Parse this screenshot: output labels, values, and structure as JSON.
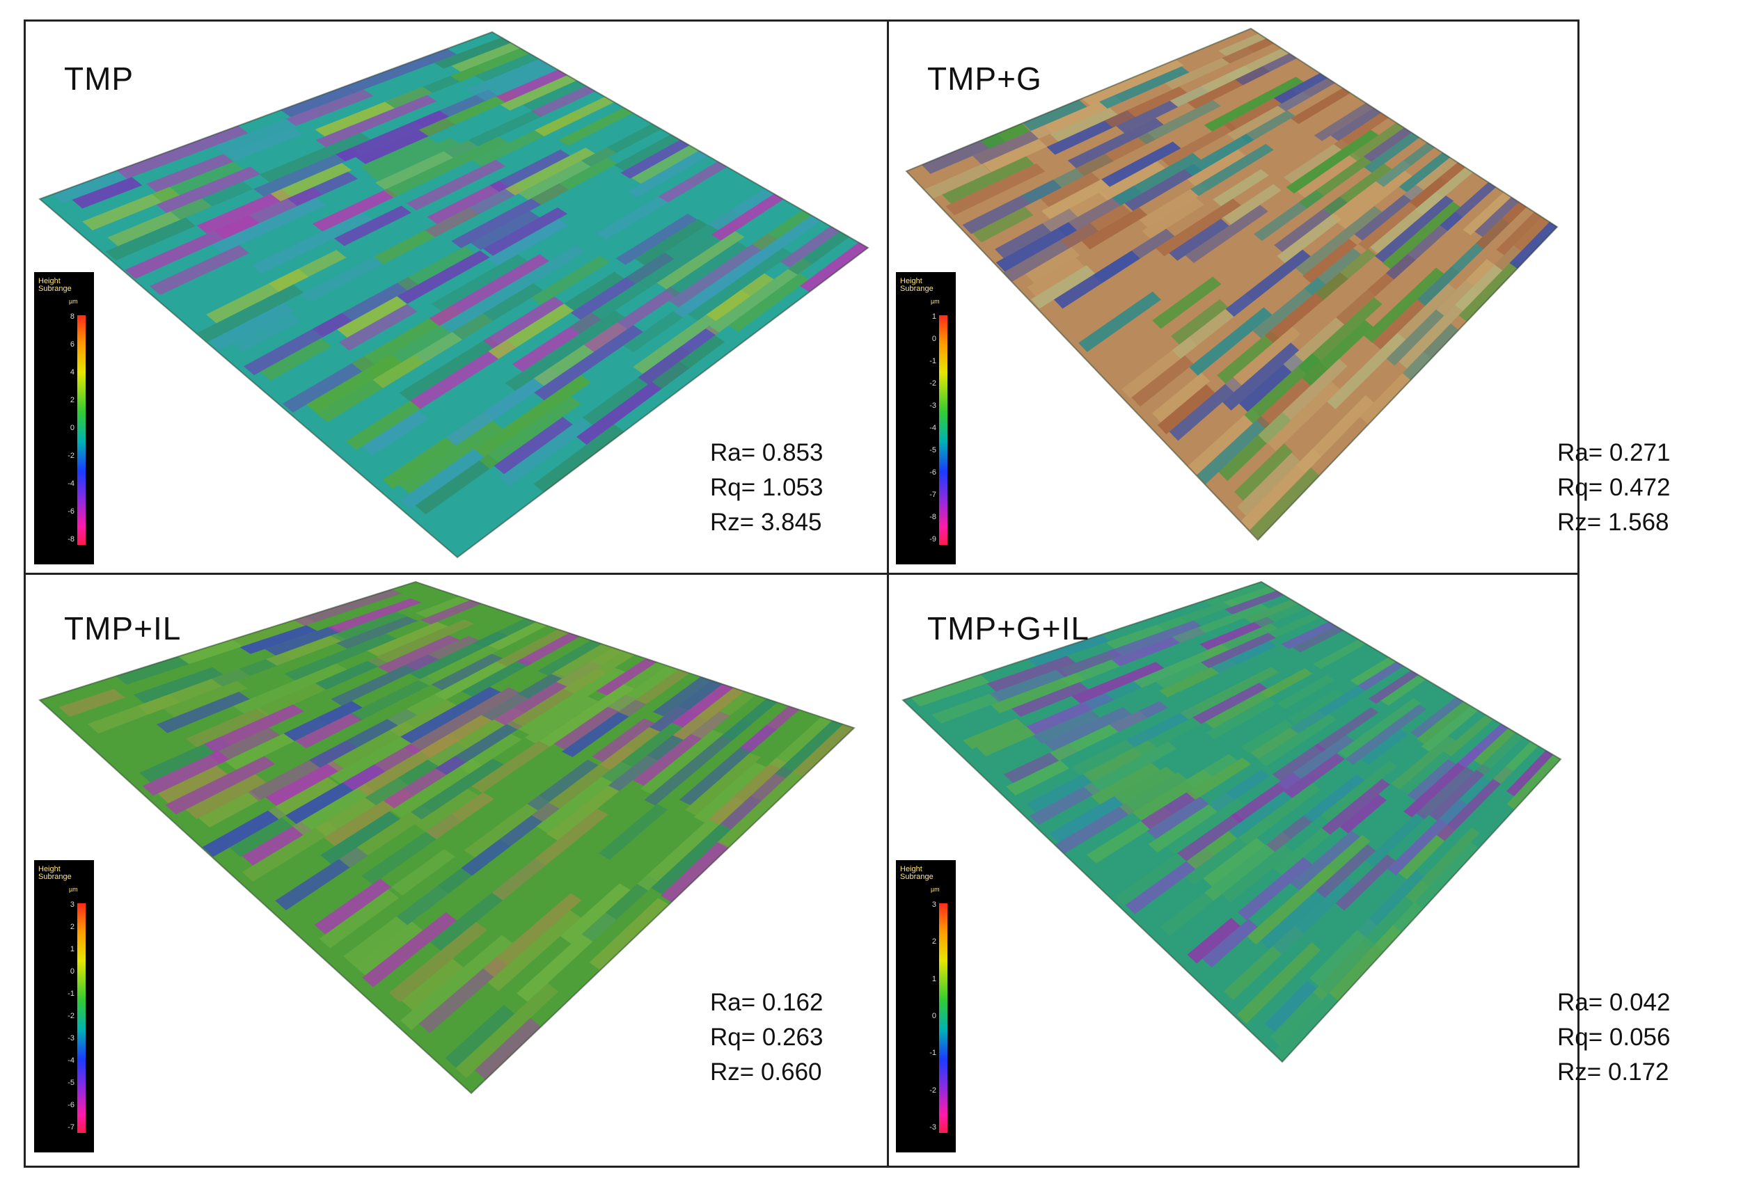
{
  "panels": [
    {
      "title": "TMP",
      "stats": {
        "ra": "Ra= 0.853",
        "rq": "Rq= 1.053",
        "rz": "Rz= 3.845"
      },
      "legend": {
        "head1": "Height",
        "head2": "Subrange",
        "unit": "µm",
        "ticks": [
          "8",
          "6",
          "4",
          "2",
          "0",
          "-2",
          "-4",
          "-6",
          "-8"
        ]
      },
      "palette": [
        "#2aa59a",
        "#2f8f6d",
        "#3c9bb5",
        "#6b3fb5",
        "#b03cb0",
        "#53a83a",
        "#9fbf3a"
      ]
    },
    {
      "title": "TMP+G",
      "stats": {
        "ra": "Ra= 0.271",
        "rq": "Rq= 0.472",
        "rz": "Rz= 1.568"
      },
      "legend": {
        "head1": "Height",
        "head2": "Subrange",
        "unit": "µm",
        "ticks": [
          "1",
          "0",
          "-1",
          "-2",
          "-3",
          "-4",
          "-5",
          "-6",
          "-7",
          "-8",
          "-9"
        ]
      },
      "palette": [
        "#b98a5b",
        "#a5643f",
        "#c9a26a",
        "#3f9a3a",
        "#2c8a8a",
        "#3c4fa5",
        "#b5b07a"
      ]
    },
    {
      "title": "TMP+IL",
      "stats": {
        "ra": "Ra= 0.162",
        "rq": "Rq= 0.263",
        "rz": "Rz= 0.660"
      },
      "legend": {
        "head1": "Height",
        "head2": "Subrange",
        "unit": "µm",
        "ticks": [
          "3",
          "2",
          "1",
          "0",
          "-1",
          "-2",
          "-3",
          "-4",
          "-5",
          "-6",
          "-7"
        ]
      },
      "palette": [
        "#4e9f3a",
        "#79a83e",
        "#9d8f47",
        "#2f8a63",
        "#3b4fb0",
        "#a83cb0",
        "#6db042"
      ]
    },
    {
      "title": "TMP+G+IL",
      "stats": {
        "ra": "Ra= 0.042",
        "rq": "Rq= 0.056",
        "rz": "Rz= 0.172"
      },
      "legend": {
        "head1": "Height",
        "head2": "Subrange",
        "unit": "µm",
        "ticks": [
          "3",
          "2",
          "1",
          "0",
          "-1",
          "-2",
          "-3"
        ]
      },
      "palette": [
        "#2e9e7a",
        "#3aa36a",
        "#4fae5a",
        "#2d8fa0",
        "#6f5bb8",
        "#8a3caa",
        "#5aa84a"
      ]
    }
  ]
}
